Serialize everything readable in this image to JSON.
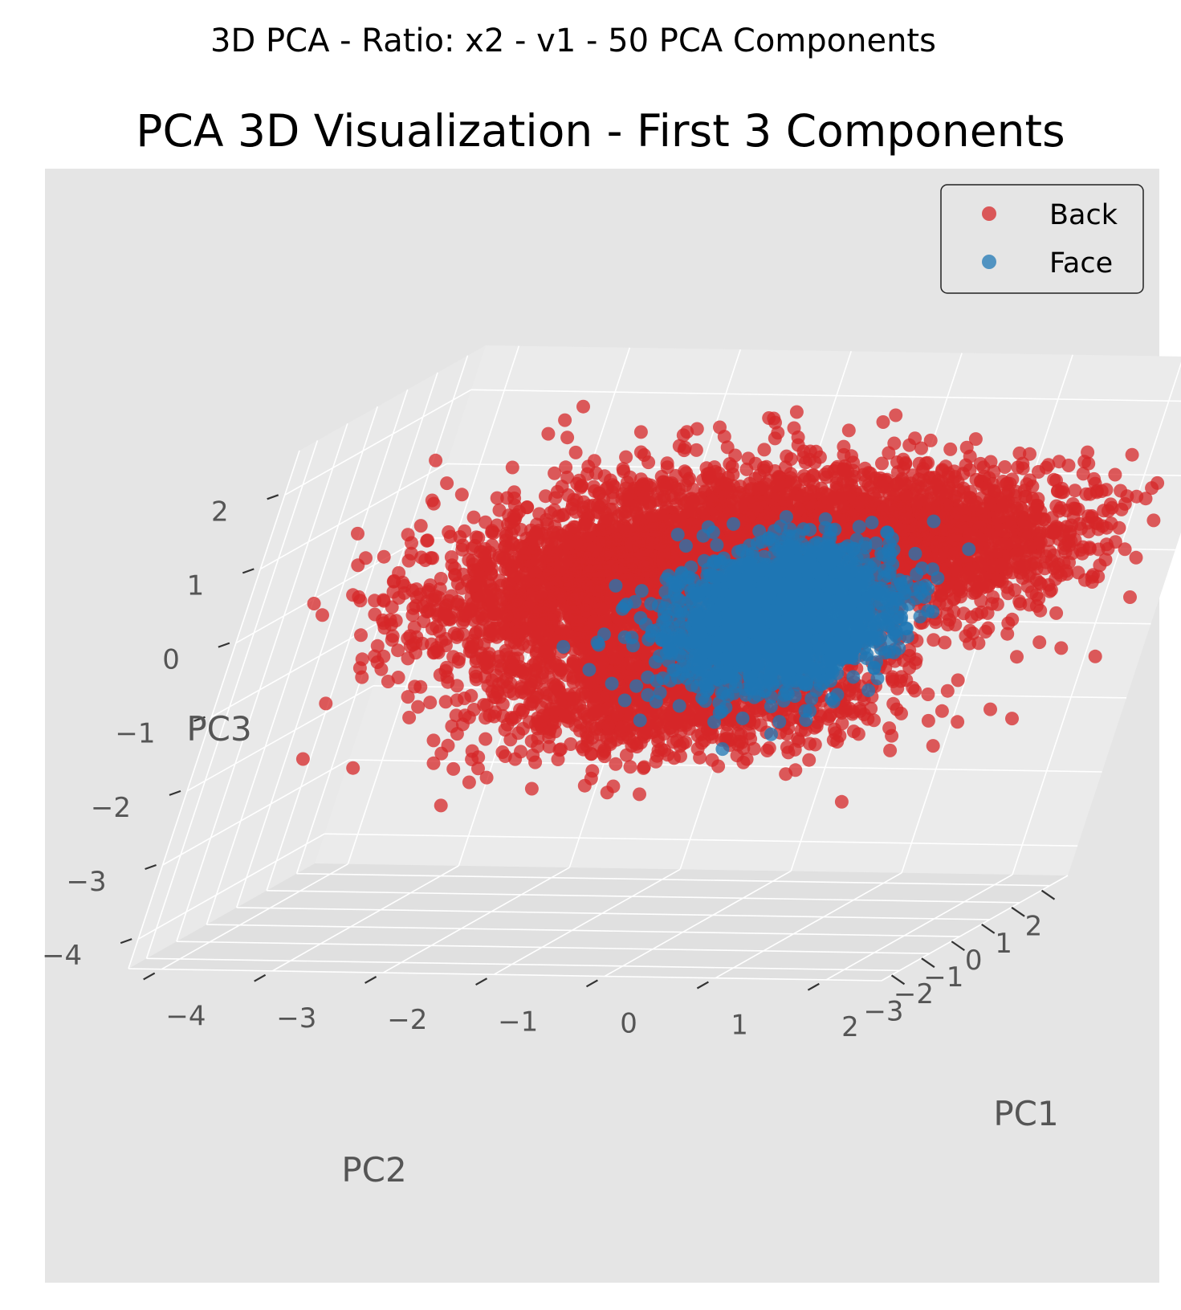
{
  "figure": {
    "suptitle": "3D PCA - Ratio: x2 - v1 - 50 PCA Components"
  },
  "chart_data": {
    "type": "scatter",
    "projection": "3d",
    "title": "PCA 3D Visualization - First 3 Components",
    "xlabel": "PC1",
    "ylabel": "PC2",
    "zlabel": "PC3",
    "xticks": [
      "−4",
      "−3",
      "−2",
      "−1",
      "0",
      "1",
      "2"
    ],
    "yticks": [
      "−3",
      "−2",
      "−1",
      "0",
      "1",
      "2"
    ],
    "zticks": [
      "2",
      "1",
      "0",
      "−1",
      "−2",
      "−3",
      "−4"
    ],
    "xlim": [
      -4.3,
      2.5
    ],
    "ylim": [
      -3.6,
      2.6
    ],
    "zlim": [
      -4.4,
      2.6
    ],
    "grid": true,
    "legend": {
      "position": "top-right"
    },
    "series": [
      {
        "name": "Back",
        "color": "#d62728",
        "approx_points": 6000,
        "clusters": [
          {
            "center": [
              -1.8,
              -1.6,
              0.3
            ],
            "spread": [
              0.75,
              0.9,
              0.5
            ]
          },
          {
            "center": [
              0.6,
              1.1,
              0.4
            ],
            "spread": [
              0.8,
              0.7,
              0.45
            ]
          },
          {
            "center": [
              -1.0,
              0.3,
              0.7
            ],
            "spread": [
              0.9,
              0.9,
              0.45
            ]
          },
          {
            "center": [
              -0.8,
              -0.4,
              -1.2
            ],
            "spread": [
              0.9,
              0.9,
              0.45
            ]
          }
        ]
      },
      {
        "name": "Face",
        "color": "#1f77b4",
        "approx_points": 2500,
        "clusters": [
          {
            "center": [
              -0.3,
              0.1,
              -0.4
            ],
            "spread": [
              0.45,
              0.45,
              0.45
            ]
          }
        ]
      }
    ]
  }
}
